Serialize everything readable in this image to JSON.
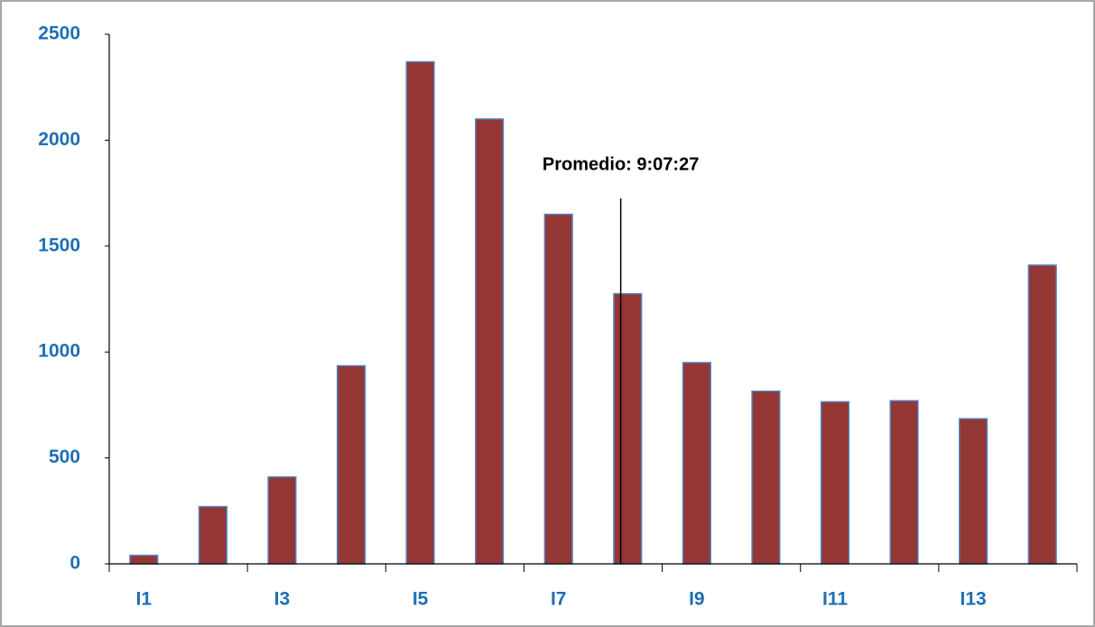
{
  "chart_data": {
    "type": "bar",
    "categories": [
      "I1",
      null,
      "I3",
      null,
      "I5",
      null,
      "I7",
      null,
      "I9",
      null,
      "I11",
      null,
      "I13",
      null
    ],
    "values": [
      40,
      270,
      410,
      935,
      2370,
      2100,
      1650,
      1275,
      950,
      815,
      765,
      770,
      685,
      1410
    ],
    "color": "#943634",
    "edge_color": "#4f81bd",
    "ylim": [
      0,
      2500
    ],
    "yticks": [
      0,
      500,
      1000,
      1500,
      2000,
      2500
    ],
    "grid": false,
    "annotation": {
      "text": "Promedio: 9:07:27",
      "x": 7.4
    }
  }
}
